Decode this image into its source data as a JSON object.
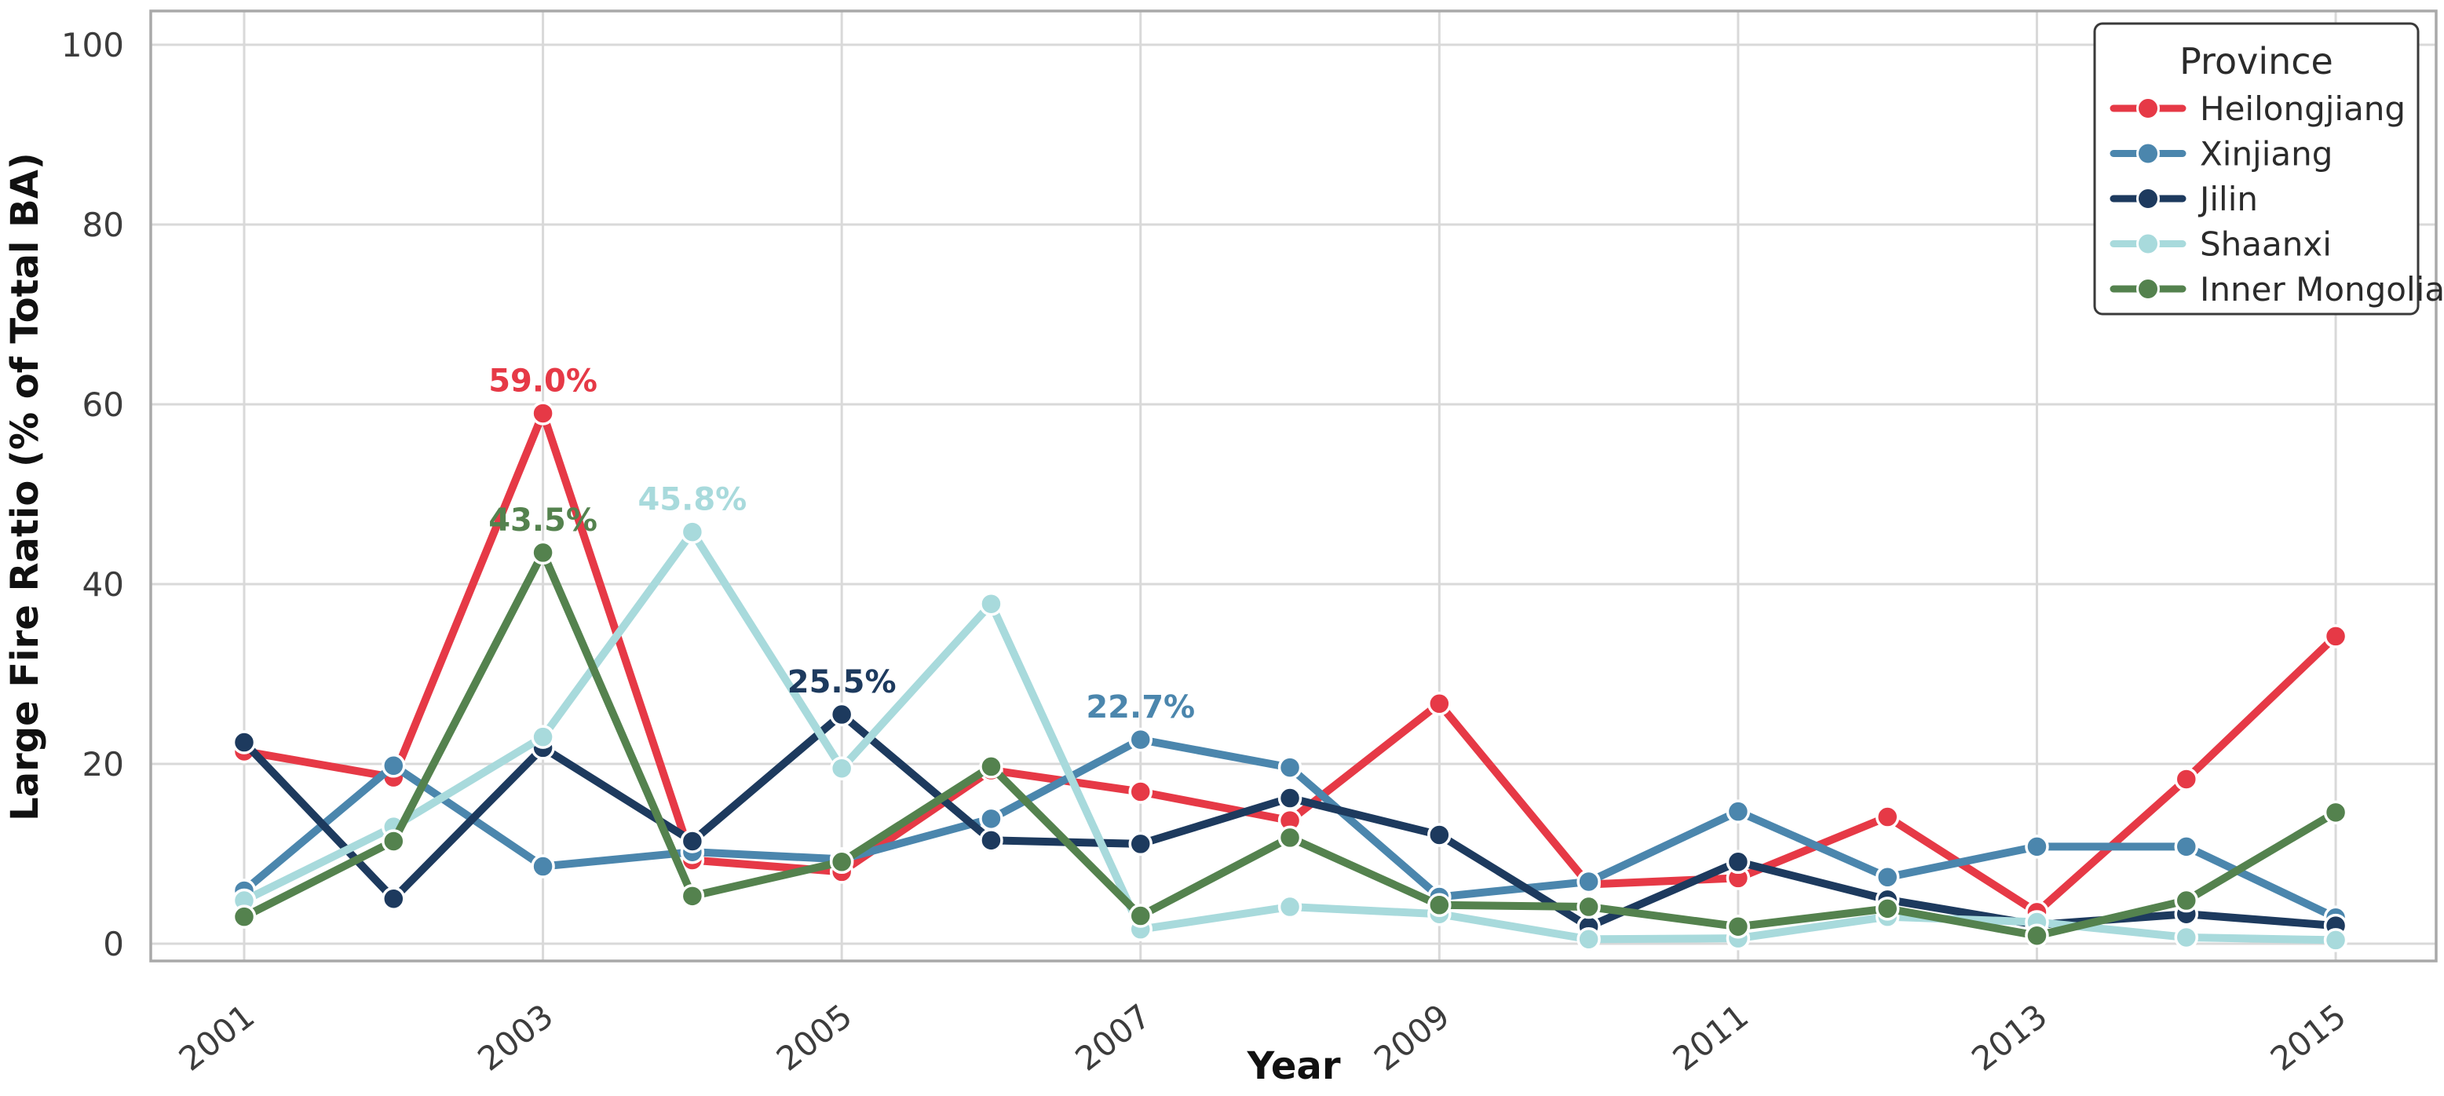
{
  "chart_data": {
    "type": "line",
    "title": "",
    "xlabel": "Year",
    "ylabel": "Large Fire Ratio (% of Total BA)",
    "x": [
      2001,
      2002,
      2003,
      2004,
      2005,
      2006,
      2007,
      2008,
      2009,
      2010,
      2011,
      2012,
      2013,
      2014,
      2015
    ],
    "x_tick_labels": [
      "2001",
      "2003",
      "2005",
      "2007",
      "2009",
      "2011",
      "2013",
      "2015"
    ],
    "y_ticks": [
      0,
      20,
      40,
      60,
      80,
      100
    ],
    "ylim": [
      -2,
      104
    ],
    "grid": true,
    "legend": {
      "title": "Province",
      "position": "upper-right"
    },
    "series": [
      {
        "name": "Heilongjiang",
        "color": "#e63946",
        "values": [
          21.4,
          18.5,
          59.0,
          9.3,
          8.0,
          19.3,
          16.9,
          13.7,
          26.7,
          6.6,
          7.3,
          14.1,
          3.5,
          18.3,
          34.2
        ]
      },
      {
        "name": "Xinjiang",
        "color": "#4b86ad",
        "values": [
          5.9,
          19.8,
          8.6,
          10.2,
          9.4,
          13.9,
          22.7,
          19.6,
          5.2,
          6.9,
          14.7,
          7.4,
          10.8,
          10.8,
          2.9
        ]
      },
      {
        "name": "Jilin",
        "color": "#1d3a5e",
        "values": [
          22.4,
          5.0,
          21.8,
          11.4,
          25.5,
          11.5,
          11.1,
          16.2,
          12.1,
          1.9,
          9.1,
          4.9,
          2.1,
          3.3,
          2.0
        ]
      },
      {
        "name": "Shaanxi",
        "color": "#a8dadc",
        "values": [
          4.8,
          13.0,
          23.0,
          45.8,
          19.5,
          37.8,
          1.6,
          4.1,
          3.3,
          0.5,
          0.6,
          3.0,
          2.4,
          0.7,
          0.4
        ]
      },
      {
        "name": "Inner Mongolia",
        "color": "#54824e",
        "values": [
          3.0,
          11.4,
          43.5,
          5.3,
          9.1,
          19.7,
          3.1,
          11.8,
          4.3,
          4.1,
          1.9,
          3.9,
          0.9,
          4.8,
          14.6
        ]
      }
    ],
    "annotations": [
      {
        "series": "Heilongjiang",
        "year": 2003,
        "text": "59.0%"
      },
      {
        "series": "Inner Mongolia",
        "year": 2003,
        "text": "43.5%"
      },
      {
        "series": "Shaanxi",
        "year": 2004,
        "text": "45.8%"
      },
      {
        "series": "Jilin",
        "year": 2005,
        "text": "25.5%"
      },
      {
        "series": "Xinjiang",
        "year": 2007,
        "text": "22.7%"
      }
    ]
  }
}
